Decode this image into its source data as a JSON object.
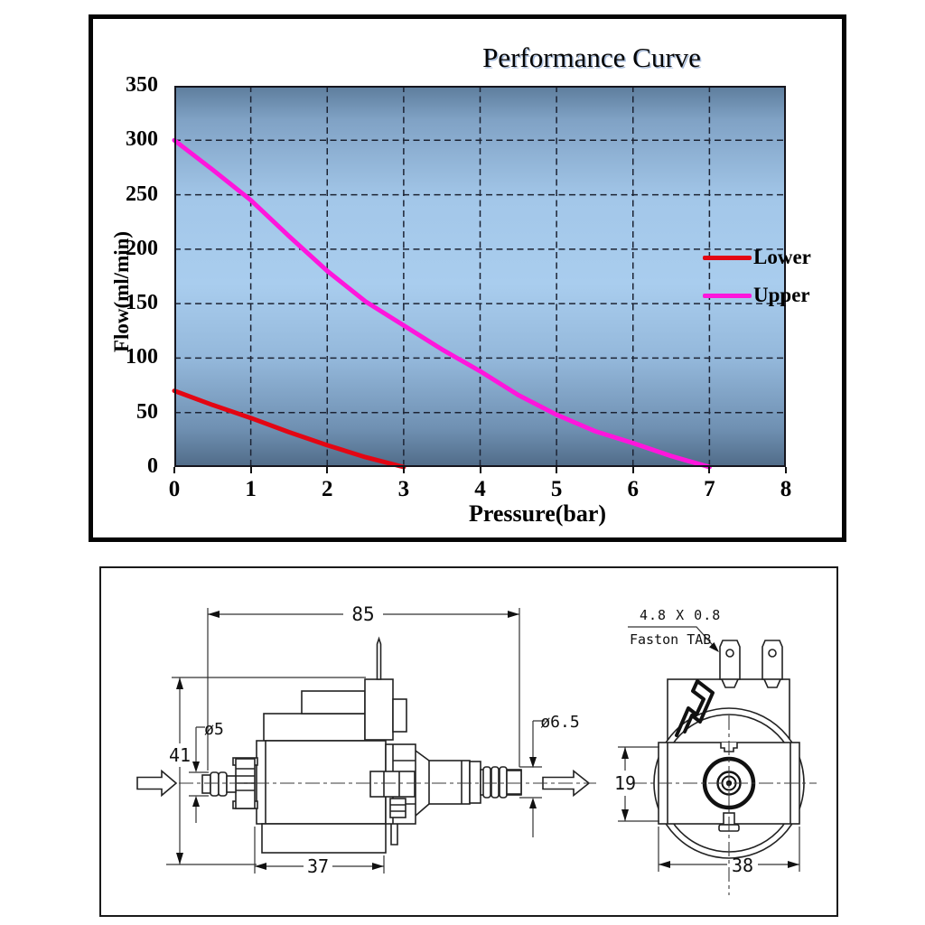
{
  "chart": {
    "title": "Performance Curve",
    "y_axis_title": "Flow(ml/min)",
    "x_axis_title": "Pressure(bar)"
  },
  "chart_data": {
    "type": "line",
    "title": "Performance Curve",
    "xlabel": "Pressure(bar)",
    "ylabel": "Flow(ml/min)",
    "xlim": [
      0,
      8
    ],
    "ylim": [
      0,
      350
    ],
    "x_ticks": [
      0,
      1,
      2,
      3,
      4,
      5,
      6,
      7,
      8
    ],
    "y_ticks": [
      0,
      50,
      100,
      150,
      200,
      250,
      300,
      350
    ],
    "grid": true,
    "legend_position": "inside-right",
    "series": [
      {
        "name": "Lower",
        "color": "#e30613",
        "points": [
          [
            0,
            70
          ],
          [
            0.5,
            57
          ],
          [
            1,
            45
          ],
          [
            1.5,
            32
          ],
          [
            2,
            20
          ],
          [
            2.5,
            9
          ],
          [
            3,
            0
          ]
        ]
      },
      {
        "name": "Upper",
        "color": "#ff16dc",
        "points": [
          [
            0,
            300
          ],
          [
            0.5,
            273
          ],
          [
            1,
            245
          ],
          [
            1.5,
            212
          ],
          [
            2,
            180
          ],
          [
            2.5,
            152
          ],
          [
            3,
            130
          ],
          [
            3.5,
            108
          ],
          [
            4,
            88
          ],
          [
            4.5,
            66
          ],
          [
            5,
            48
          ],
          [
            5.5,
            33
          ],
          [
            6,
            22
          ],
          [
            6.5,
            10
          ],
          [
            7,
            0
          ]
        ]
      }
    ]
  },
  "drawing": {
    "length_overall": "85",
    "height_overall": "41",
    "inlet_diameter": "ø5",
    "outlet_diameter": "ø6.5",
    "body_length": "37",
    "bracket_height": "19",
    "body_width": "38",
    "tab_size": "4.8 X 0.8",
    "tab_name": "Faston TAB"
  }
}
